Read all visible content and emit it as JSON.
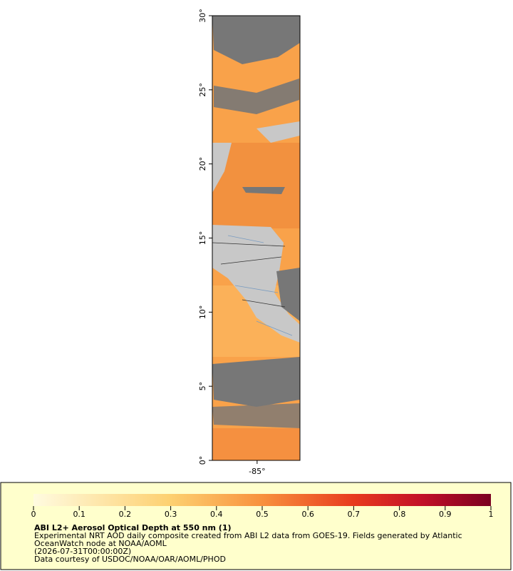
{
  "map": {
    "ylim": [
      0,
      30
    ],
    "xlim": [
      -88.03,
      -82.1
    ],
    "yticks": [
      {
        "value": 0,
        "label": "0°"
      },
      {
        "value": 5,
        "label": "5°"
      },
      {
        "value": 10,
        "label": "10°"
      },
      {
        "value": 15,
        "label": "15°"
      },
      {
        "value": 20,
        "label": "20°"
      },
      {
        "value": 25,
        "label": "25°"
      },
      {
        "value": 30,
        "label": "30°"
      }
    ],
    "xticks": [
      {
        "value": -85,
        "label": "-85°"
      }
    ]
  },
  "colorbar": {
    "lim": [
      0,
      1
    ],
    "ticks": [
      0,
      0.1,
      0.2,
      0.3,
      0.4,
      0.5,
      0.6,
      0.7,
      0.8,
      0.9,
      1
    ]
  },
  "legend": {
    "title": "ABI L2+ Aerosol Optical Depth at 550 nm (1)",
    "lines": [
      "Experimental NRT AOD daily composite created from ABI L2 data from GOES-19. Fields generated by Atlantic",
      "OceanWatch node at NOAA/AOML",
      "(2026-07-31T00:00:00Z)",
      "Data courtesy of USDOC/NOAA/OAR/AOML/PHOD"
    ]
  }
}
